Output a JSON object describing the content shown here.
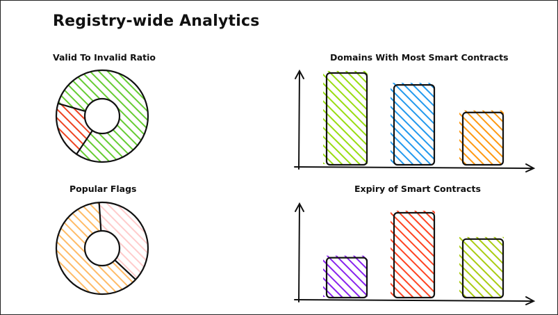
{
  "title": "Registry-wide Analytics",
  "panels": {
    "valid_ratio": {
      "title": "Valid To Invalid Ratio",
      "colors": {
        "valid": "#66cc33",
        "invalid": "#ee4422"
      }
    },
    "most_contracts": {
      "title": "Domains With Most Smart Contracts",
      "colors": [
        "#99dd11",
        "#2299ee",
        "#ff9911"
      ]
    },
    "popular_flags": {
      "title": "Popular Flags",
      "colors": {
        "first": "#ffbb66",
        "second": "#ffcccc"
      }
    },
    "expiry": {
      "title": "Expiry of Smart Contracts",
      "colors": [
        "#8822ee",
        "#ff4422",
        "#aacc11"
      ]
    }
  },
  "chart_data": [
    {
      "type": "pie",
      "title": "Valid To Invalid Ratio",
      "values": [
        80,
        20
      ]
    },
    {
      "type": "bar",
      "title": "Domains With Most Smart Contracts",
      "values": [
        100,
        87,
        57
      ],
      "ylim": [
        0,
        110
      ]
    },
    {
      "type": "pie",
      "title": "Popular Flags",
      "values": [
        62,
        38
      ]
    },
    {
      "type": "bar",
      "title": "Expiry of Smart Contracts",
      "values": [
        47,
        100,
        69
      ],
      "ylim": [
        0,
        110
      ]
    }
  ]
}
